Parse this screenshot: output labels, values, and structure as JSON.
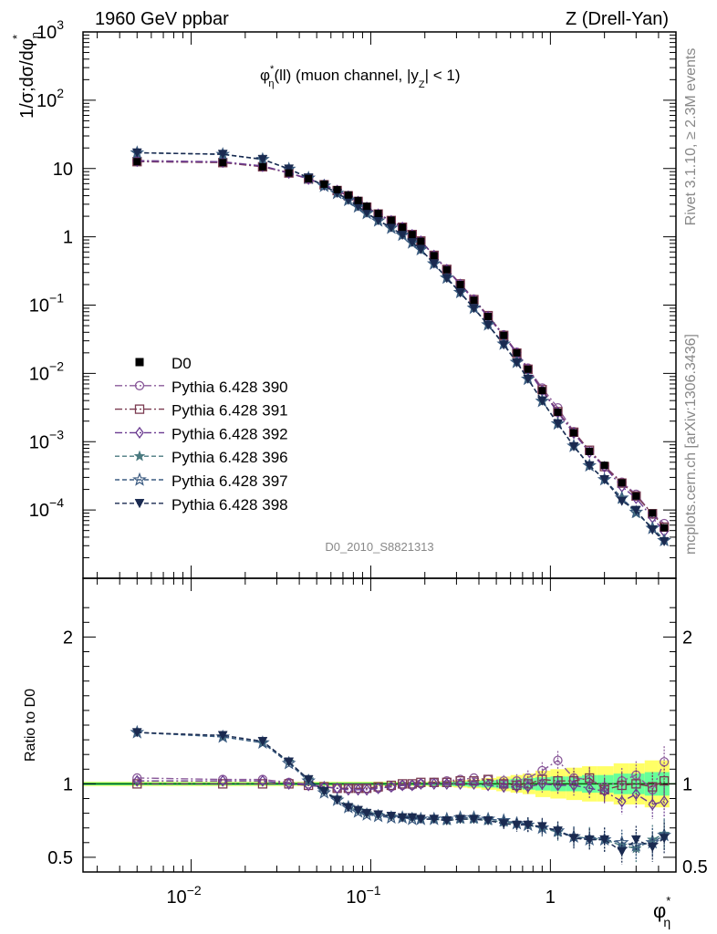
{
  "header": {
    "left": "1960 GeV ppbar",
    "right": "Z (Drell-Yan)"
  },
  "side": {
    "rivet": "Rivet 3.1.10, ≥ 2.3M events",
    "mcplots": "mcplots.cern.ch [arXiv:1306.3436]"
  },
  "watermark": "D0_2010_S8821313",
  "plot_title": {
    "main": "φ",
    "sup": "*",
    "sub": "η",
    "rest": "(ll) (muon channel, |y",
    "sub2": "Z",
    "end": "| < 1)"
  },
  "ylabel_top": {
    "pre": "1/σ;dσ/dφ",
    "sub": "η",
    "sup": "*"
  },
  "ylabel_bottom": "Ratio to D0",
  "xlabel": {
    "main": "φ",
    "sup": "*",
    "sub": "η"
  },
  "colors": {
    "p390": "#8a5a9a",
    "p391": "#7a3a50",
    "p392": "#6a3a90",
    "p396": "#4a7a80",
    "p397": "#3a5a80",
    "p398": "#1a2a50",
    "band_yellow": "#ffff66",
    "band_green": "#66ff99",
    "ref_line": "#0a5a0a"
  },
  "chart_data": {
    "type": "line",
    "x": [
      0.005,
      0.015,
      0.025,
      0.035,
      0.045,
      0.055,
      0.065,
      0.075,
      0.085,
      0.095,
      0.11,
      0.13,
      0.15,
      0.17,
      0.19,
      0.225,
      0.265,
      0.315,
      0.375,
      0.45,
      0.55,
      0.65,
      0.75,
      0.9,
      1.1,
      1.35,
      1.65,
      2.0,
      2.5,
      3.0,
      3.7,
      4.3
    ],
    "xlim": [
      0.0025,
      5.0
    ],
    "log_x": true,
    "main": {
      "ylim": [
        1e-05,
        1000
      ],
      "log_y": true,
      "yticks": [
        {
          "v": 0.0001,
          "m": "10",
          "e": "−4"
        },
        {
          "v": 0.001,
          "m": "10",
          "e": "−3"
        },
        {
          "v": 0.01,
          "m": "10",
          "e": "−2"
        },
        {
          "v": 0.1,
          "m": "10",
          "e": "−1"
        },
        {
          "v": 1,
          "m": "1",
          "e": ""
        },
        {
          "v": 10,
          "m": "10",
          "e": ""
        },
        {
          "v": 100,
          "m": "10",
          "e": "2"
        },
        {
          "v": 1000,
          "m": "10",
          "e": "3"
        }
      ],
      "data": [
        12.6,
        12.2,
        10.6,
        8.6,
        7.1,
        5.9,
        4.9,
        4.1,
        3.4,
        2.8,
        2.2,
        1.75,
        1.38,
        1.08,
        0.86,
        0.53,
        0.33,
        0.2,
        0.118,
        0.068,
        0.036,
        0.02,
        0.0115,
        0.0056,
        0.0027,
        0.00135,
        0.00072,
        0.00045,
        0.00025,
        0.00016,
        9e-05,
        5.5e-05
      ]
    },
    "ratio": {
      "ylim": [
        0.4,
        2.4
      ],
      "yticks": [
        0.5,
        1,
        2
      ],
      "ytick_labels": [
        "0.5",
        "1",
        "2"
      ],
      "band_green": [
        0.01,
        0.01,
        0.01,
        0.01,
        0.01,
        0.01,
        0.01,
        0.01,
        0.01,
        0.01,
        0.01,
        0.01,
        0.01,
        0.01,
        0.01,
        0.012,
        0.014,
        0.016,
        0.02,
        0.025,
        0.03,
        0.035,
        0.04,
        0.045,
        0.05,
        0.05,
        0.06,
        0.06,
        0.07,
        0.07,
        0.08,
        0.08
      ],
      "band_yellow": [
        0.015,
        0.015,
        0.015,
        0.015,
        0.015,
        0.015,
        0.015,
        0.015,
        0.015,
        0.015,
        0.015,
        0.015,
        0.015,
        0.015,
        0.015,
        0.018,
        0.02,
        0.025,
        0.03,
        0.04,
        0.05,
        0.06,
        0.07,
        0.09,
        0.1,
        0.11,
        0.12,
        0.12,
        0.14,
        0.14,
        0.16,
        0.16
      ]
    },
    "legend": {
      "data_label": "D0",
      "placement": "left"
    },
    "series": [
      {
        "name": "Pythia 6.428 390",
        "key": "p390",
        "marker": "circle",
        "dash": "8,3,2,3",
        "ratio": [
          1.04,
          1.03,
          1.03,
          1.01,
          1.0,
          0.98,
          0.97,
          0.97,
          0.97,
          0.97,
          0.97,
          0.98,
          0.99,
          0.99,
          1.0,
          1.01,
          1.02,
          1.03,
          1.04,
          1.03,
          1.02,
          1.02,
          1.04,
          1.09,
          1.16,
          1.04,
          1.03,
          0.98,
          1.02,
          1.06,
          0.96,
          1.15
        ]
      },
      {
        "name": "Pythia 6.428 391",
        "key": "p391",
        "marker": "square",
        "dash": "8,3,2,3",
        "ratio": [
          1.0,
          1.0,
          1.0,
          1.0,
          0.99,
          0.98,
          0.97,
          0.97,
          0.97,
          0.97,
          0.98,
          0.99,
          1.0,
          1.0,
          1.01,
          1.01,
          1.01,
          1.02,
          1.02,
          1.03,
          1.0,
          0.99,
          1.0,
          1.03,
          1.02,
          1.02,
          1.04,
          0.96,
          0.99,
          1.0,
          0.98,
          1.02
        ]
      },
      {
        "name": "Pythia 6.428 392",
        "key": "p392",
        "marker": "diamond",
        "dash": "8,3,2,3",
        "ratio": [
          1.02,
          1.02,
          1.02,
          1.0,
          0.99,
          0.98,
          0.97,
          0.96,
          0.96,
          0.96,
          0.97,
          0.98,
          0.99,
          0.99,
          1.0,
          1.0,
          1.0,
          1.0,
          1.0,
          0.99,
          0.98,
          0.98,
          0.98,
          1.0,
          0.99,
          0.99,
          0.97,
          0.95,
          0.88,
          0.93,
          0.86,
          0.88
        ]
      },
      {
        "name": "Pythia 6.428 396",
        "key": "p396",
        "marker": "star",
        "dash": "5,3",
        "ratio": [
          1.35,
          1.32,
          1.28,
          1.15,
          1.03,
          0.95,
          0.9,
          0.85,
          0.82,
          0.8,
          0.79,
          0.78,
          0.77,
          0.77,
          0.76,
          0.76,
          0.75,
          0.76,
          0.76,
          0.75,
          0.74,
          0.73,
          0.72,
          0.7,
          0.67,
          0.64,
          0.63,
          0.62,
          0.58,
          0.56,
          0.62,
          0.66
        ]
      },
      {
        "name": "Pythia 6.428 397",
        "key": "p397",
        "marker": "star-open",
        "dash": "5,3",
        "ratio": [
          1.35,
          1.32,
          1.28,
          1.14,
          1.02,
          0.94,
          0.89,
          0.84,
          0.81,
          0.79,
          0.78,
          0.77,
          0.77,
          0.76,
          0.76,
          0.76,
          0.76,
          0.77,
          0.77,
          0.76,
          0.75,
          0.73,
          0.72,
          0.7,
          0.68,
          0.64,
          0.62,
          0.62,
          0.6,
          0.58,
          0.6,
          0.65
        ]
      },
      {
        "name": "Pythia 6.428 398",
        "key": "p398",
        "marker": "triangle-down",
        "dash": "5,3",
        "ratio": [
          1.35,
          1.33,
          1.29,
          1.15,
          1.03,
          0.95,
          0.89,
          0.84,
          0.82,
          0.8,
          0.79,
          0.78,
          0.77,
          0.77,
          0.76,
          0.76,
          0.75,
          0.76,
          0.76,
          0.75,
          0.73,
          0.72,
          0.72,
          0.71,
          0.68,
          0.63,
          0.62,
          0.62,
          0.54,
          0.62,
          0.57,
          0.63
        ]
      }
    ],
    "xticks_major": [
      {
        "v": 0.01,
        "m": "10",
        "e": "−2"
      },
      {
        "v": 0.1,
        "m": "10",
        "e": "−1"
      },
      {
        "v": 1,
        "m": "1",
        "e": ""
      }
    ]
  }
}
